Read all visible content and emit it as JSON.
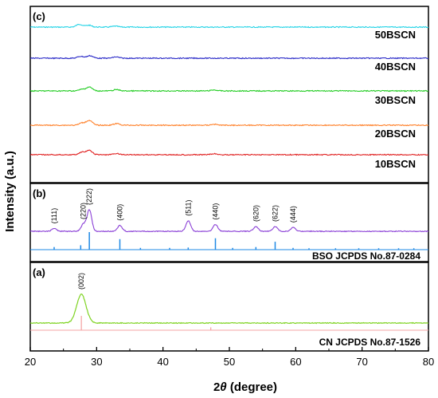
{
  "chart_data": {
    "type": "line",
    "xlabel_prefix": "2",
    "xlabel_theta": "θ",
    "xlabel_suffix": " (degree)",
    "ylabel": "Intensity (a.u.)",
    "xlim": [
      20,
      80
    ],
    "xticks": [
      20,
      30,
      40,
      50,
      60,
      70,
      80
    ],
    "panels": [
      {
        "id": "c",
        "label": "(c)",
        "series": [
          {
            "name": "50BSCN",
            "color": "#22d3e6",
            "peaks": [
              [
                27.4,
                0.9
              ],
              [
                28.8,
                0.6
              ],
              [
                32.8,
                0.3
              ]
            ]
          },
          {
            "name": "40BSCN",
            "color": "#2b2bc8",
            "peaks": [
              [
                27.6,
                0.6
              ],
              [
                29.0,
                0.8
              ],
              [
                32.9,
                0.4
              ]
            ]
          },
          {
            "name": "30BSCN",
            "color": "#22cc22",
            "peaks": [
              [
                27.8,
                0.5
              ],
              [
                28.9,
                1.2
              ],
              [
                33.0,
                0.4
              ],
              [
                47.7,
                0.3
              ]
            ]
          },
          {
            "name": "20BSCN",
            "color": "#ff7f27",
            "peaks": [
              [
                27.8,
                0.7
              ],
              [
                28.9,
                1.5
              ],
              [
                33.0,
                0.5
              ],
              [
                47.7,
                0.3
              ]
            ]
          },
          {
            "name": "10BSCN",
            "color": "#e02020",
            "peaks": [
              [
                27.8,
                0.8
              ],
              [
                28.9,
                1.3
              ],
              [
                33.0,
                0.4
              ],
              [
                47.7,
                0.3
              ]
            ]
          }
        ]
      },
      {
        "id": "b",
        "label": "(b)",
        "reference_label": "BSO JCPDS No.87-0284",
        "series_color": "#8a3fd6",
        "ref_color": "#1e88e5",
        "peaks": [
          {
            "x": 23.6,
            "y": 0.6,
            "label": "(111)"
          },
          {
            "x": 28.0,
            "y": 1.5,
            "label": "(220)"
          },
          {
            "x": 28.9,
            "y": 4.5,
            "label": "(222)"
          },
          {
            "x": 33.5,
            "y": 1.2,
            "label": "(400)"
          },
          {
            "x": 43.8,
            "y": 2.2,
            "label": "(511)"
          },
          {
            "x": 47.9,
            "y": 1.4,
            "label": "(440)"
          },
          {
            "x": 54.0,
            "y": 1.0,
            "label": "(620)"
          },
          {
            "x": 56.9,
            "y": 1.0,
            "label": "(622)"
          },
          {
            "x": 59.6,
            "y": 0.8,
            "label": "(444)"
          }
        ],
        "ref_lines": [
          {
            "x": 23.6,
            "h": 0.15
          },
          {
            "x": 27.6,
            "h": 0.25
          },
          {
            "x": 28.9,
            "h": 1.0
          },
          {
            "x": 33.5,
            "h": 0.6
          },
          {
            "x": 36.6,
            "h": 0.1
          },
          {
            "x": 41.0,
            "h": 0.1
          },
          {
            "x": 43.8,
            "h": 0.12
          },
          {
            "x": 47.9,
            "h": 0.65
          },
          {
            "x": 50.5,
            "h": 0.1
          },
          {
            "x": 54.0,
            "h": 0.15
          },
          {
            "x": 56.9,
            "h": 0.45
          },
          {
            "x": 59.6,
            "h": 0.1
          },
          {
            "x": 62.0,
            "h": 0.08
          },
          {
            "x": 66.0,
            "h": 0.08
          },
          {
            "x": 69.5,
            "h": 0.08
          },
          {
            "x": 72.5,
            "h": 0.08
          },
          {
            "x": 75.5,
            "h": 0.08
          },
          {
            "x": 77.8,
            "h": 0.08
          }
        ]
      },
      {
        "id": "a",
        "label": "(a)",
        "reference_label": "CN  JCPDS No.87-1526",
        "series_color": "#7ed321",
        "ref_color": "#f4a6a6",
        "peaks": [
          {
            "x": 27.7,
            "y": 1.0,
            "label": "(002)"
          }
        ],
        "ref_lines": [
          {
            "x": 27.7,
            "h": 1.0
          },
          {
            "x": 47.2,
            "h": 0.2
          }
        ]
      }
    ]
  }
}
